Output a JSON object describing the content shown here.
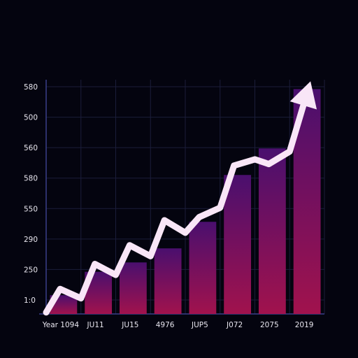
{
  "colors": {
    "background": "#04040f",
    "grid": "#1b1d3a",
    "axis": "#3a3f8a",
    "bar_top": "#4a0f6e",
    "bar_bottom": "#a1124d",
    "trend_arrow": "#f9e6f7",
    "tick_text": "#e8e6ef"
  },
  "chart_data": {
    "type": "bar",
    "title": "",
    "xlabel": "",
    "ylabel": "",
    "y_tick_labels": [
      "1:0",
      "250",
      "290",
      "550",
      "580",
      "560",
      "500",
      "580"
    ],
    "x_tick_labels": [
      "Year 1094",
      "JU11",
      "JU15",
      "4976",
      "JUP5",
      "J072",
      "2075",
      "2019"
    ],
    "categories": [
      "Year 1094",
      "JU11",
      "JU15",
      "4976",
      "JUP5",
      "J072",
      "2075",
      "2019"
    ],
    "values": [
      0.6,
      1.35,
      1.65,
      2.1,
      2.95,
      4.45,
      5.3,
      7.2
    ],
    "ylim": [
      0,
      7.5
    ],
    "grid": true,
    "trend_arrow": {
      "x": [
        0,
        0.4,
        1.0,
        1.4,
        2.0,
        2.4,
        3.0,
        3.4,
        4.0,
        4.4,
        5.0,
        5.4,
        6.0,
        6.4,
        7.0,
        7.6
      ],
      "y": [
        0.05,
        0.8,
        0.5,
        1.6,
        1.25,
        2.2,
        1.85,
        3.0,
        2.6,
        3.1,
        3.4,
        4.75,
        4.95,
        4.8,
        5.2,
        7.45
      ]
    }
  }
}
